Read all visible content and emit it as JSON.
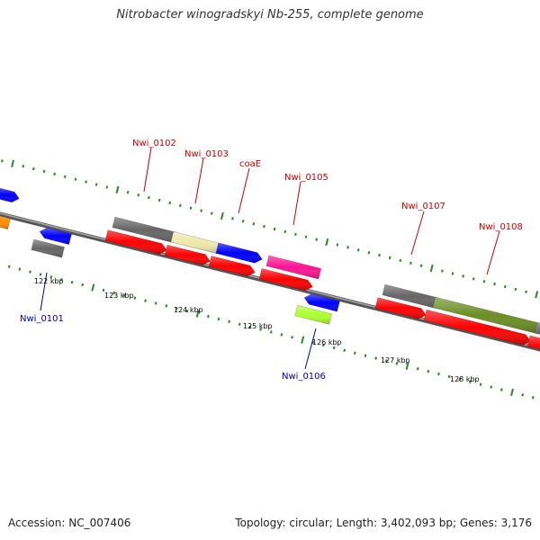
{
  "title": "Nitrobacter winogradskyi Nb-255, complete genome",
  "footer": {
    "accession": "Accession: NC_007406",
    "summary": "Topology: circular; Length: 3,402,093 bp; Genes: 3,176"
  },
  "scale_labels": [
    "122 kbp",
    "123 kbp",
    "124 kbp",
    "125 kbp",
    "126 kbp",
    "127 kbp",
    "128 kbp"
  ],
  "colors": {
    "forward_label": "#cc0000",
    "reverse_label": "#0000aa",
    "backbone": "#888888",
    "tick": "#228B22",
    "cds": "#ff0000",
    "blue": "#0000ff",
    "gray": "#666666",
    "khaki": "#eee8aa",
    "magenta": "#ff1493",
    "olive": "#6b8e23",
    "lime": "#adff2f",
    "orange": "#ff8c00"
  },
  "gene_labels": [
    {
      "text": "Nwi_0101",
      "strand": "reverse"
    },
    {
      "text": "Nwi_0102",
      "strand": "forward"
    },
    {
      "text": "Nwi_0103",
      "strand": "forward"
    },
    {
      "text": "coaE",
      "strand": "forward"
    },
    {
      "text": "Nwi_0105",
      "strand": "forward"
    },
    {
      "text": "Nwi_0106",
      "strand": "reverse"
    },
    {
      "text": "Nwi_0107",
      "strand": "forward"
    },
    {
      "text": "Nwi_0108",
      "strand": "forward"
    }
  ]
}
